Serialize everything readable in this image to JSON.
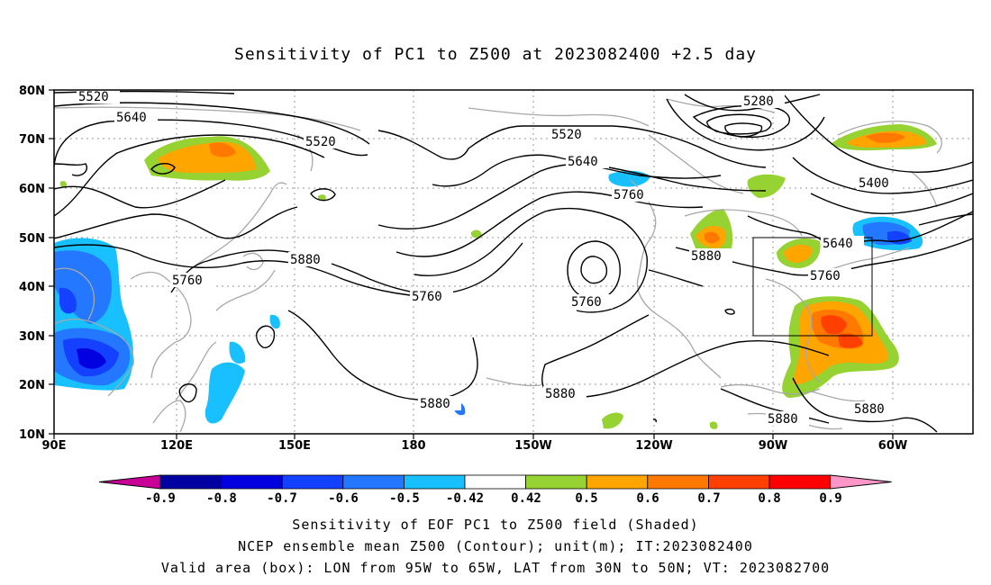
{
  "title": "Sensitivity of PC1 to Z500 at 2023082400 +2.5 day",
  "footer": {
    "line1": "Sensitivity of EOF PC1 to Z500 field (Shaded)",
    "line2": "NCEP ensemble mean Z500 (Contour); unit(m); IT:2023082400",
    "line3": "Valid area (box): LON from 95W to 65W, LAT from 30N to 50N; VT: 2023082700"
  },
  "map": {
    "lon_ticks": [
      "90E",
      "120E",
      "150E",
      "180",
      "150W",
      "120W",
      "90W",
      "60W"
    ],
    "lat_ticks": [
      "80N",
      "70N",
      "60N",
      "50N",
      "40N",
      "30N",
      "20N",
      "10N"
    ],
    "contour_labels": [
      "5520",
      "5640",
      "5520",
      "5280",
      "5520",
      "5640",
      "5760",
      "5400",
      "5640",
      "5760",
      "5880",
      "5760",
      "5760",
      "5880",
      "5760",
      "5880",
      "5880",
      "5880",
      "5880"
    ],
    "valid_box": {
      "lon_west": "95W",
      "lon_east": "65W",
      "lat_south": "30N",
      "lat_north": "50N"
    }
  },
  "colorbar": {
    "labels": [
      "-0.9",
      "-0.8",
      "-0.7",
      "-0.6",
      "-0.5",
      "-0.42",
      "0.42",
      "0.5",
      "0.6",
      "0.7",
      "0.8",
      "0.9"
    ],
    "colors": [
      "#0000a0",
      "#0000e0",
      "#1440ff",
      "#2478ff",
      "#18c0ff",
      "#ffffff",
      "#96d232",
      "#ffa500",
      "#ff7800",
      "#ff4000",
      "#ff0000"
    ],
    "under_color": "#c80096",
    "over_color": "#ff96c8"
  }
}
